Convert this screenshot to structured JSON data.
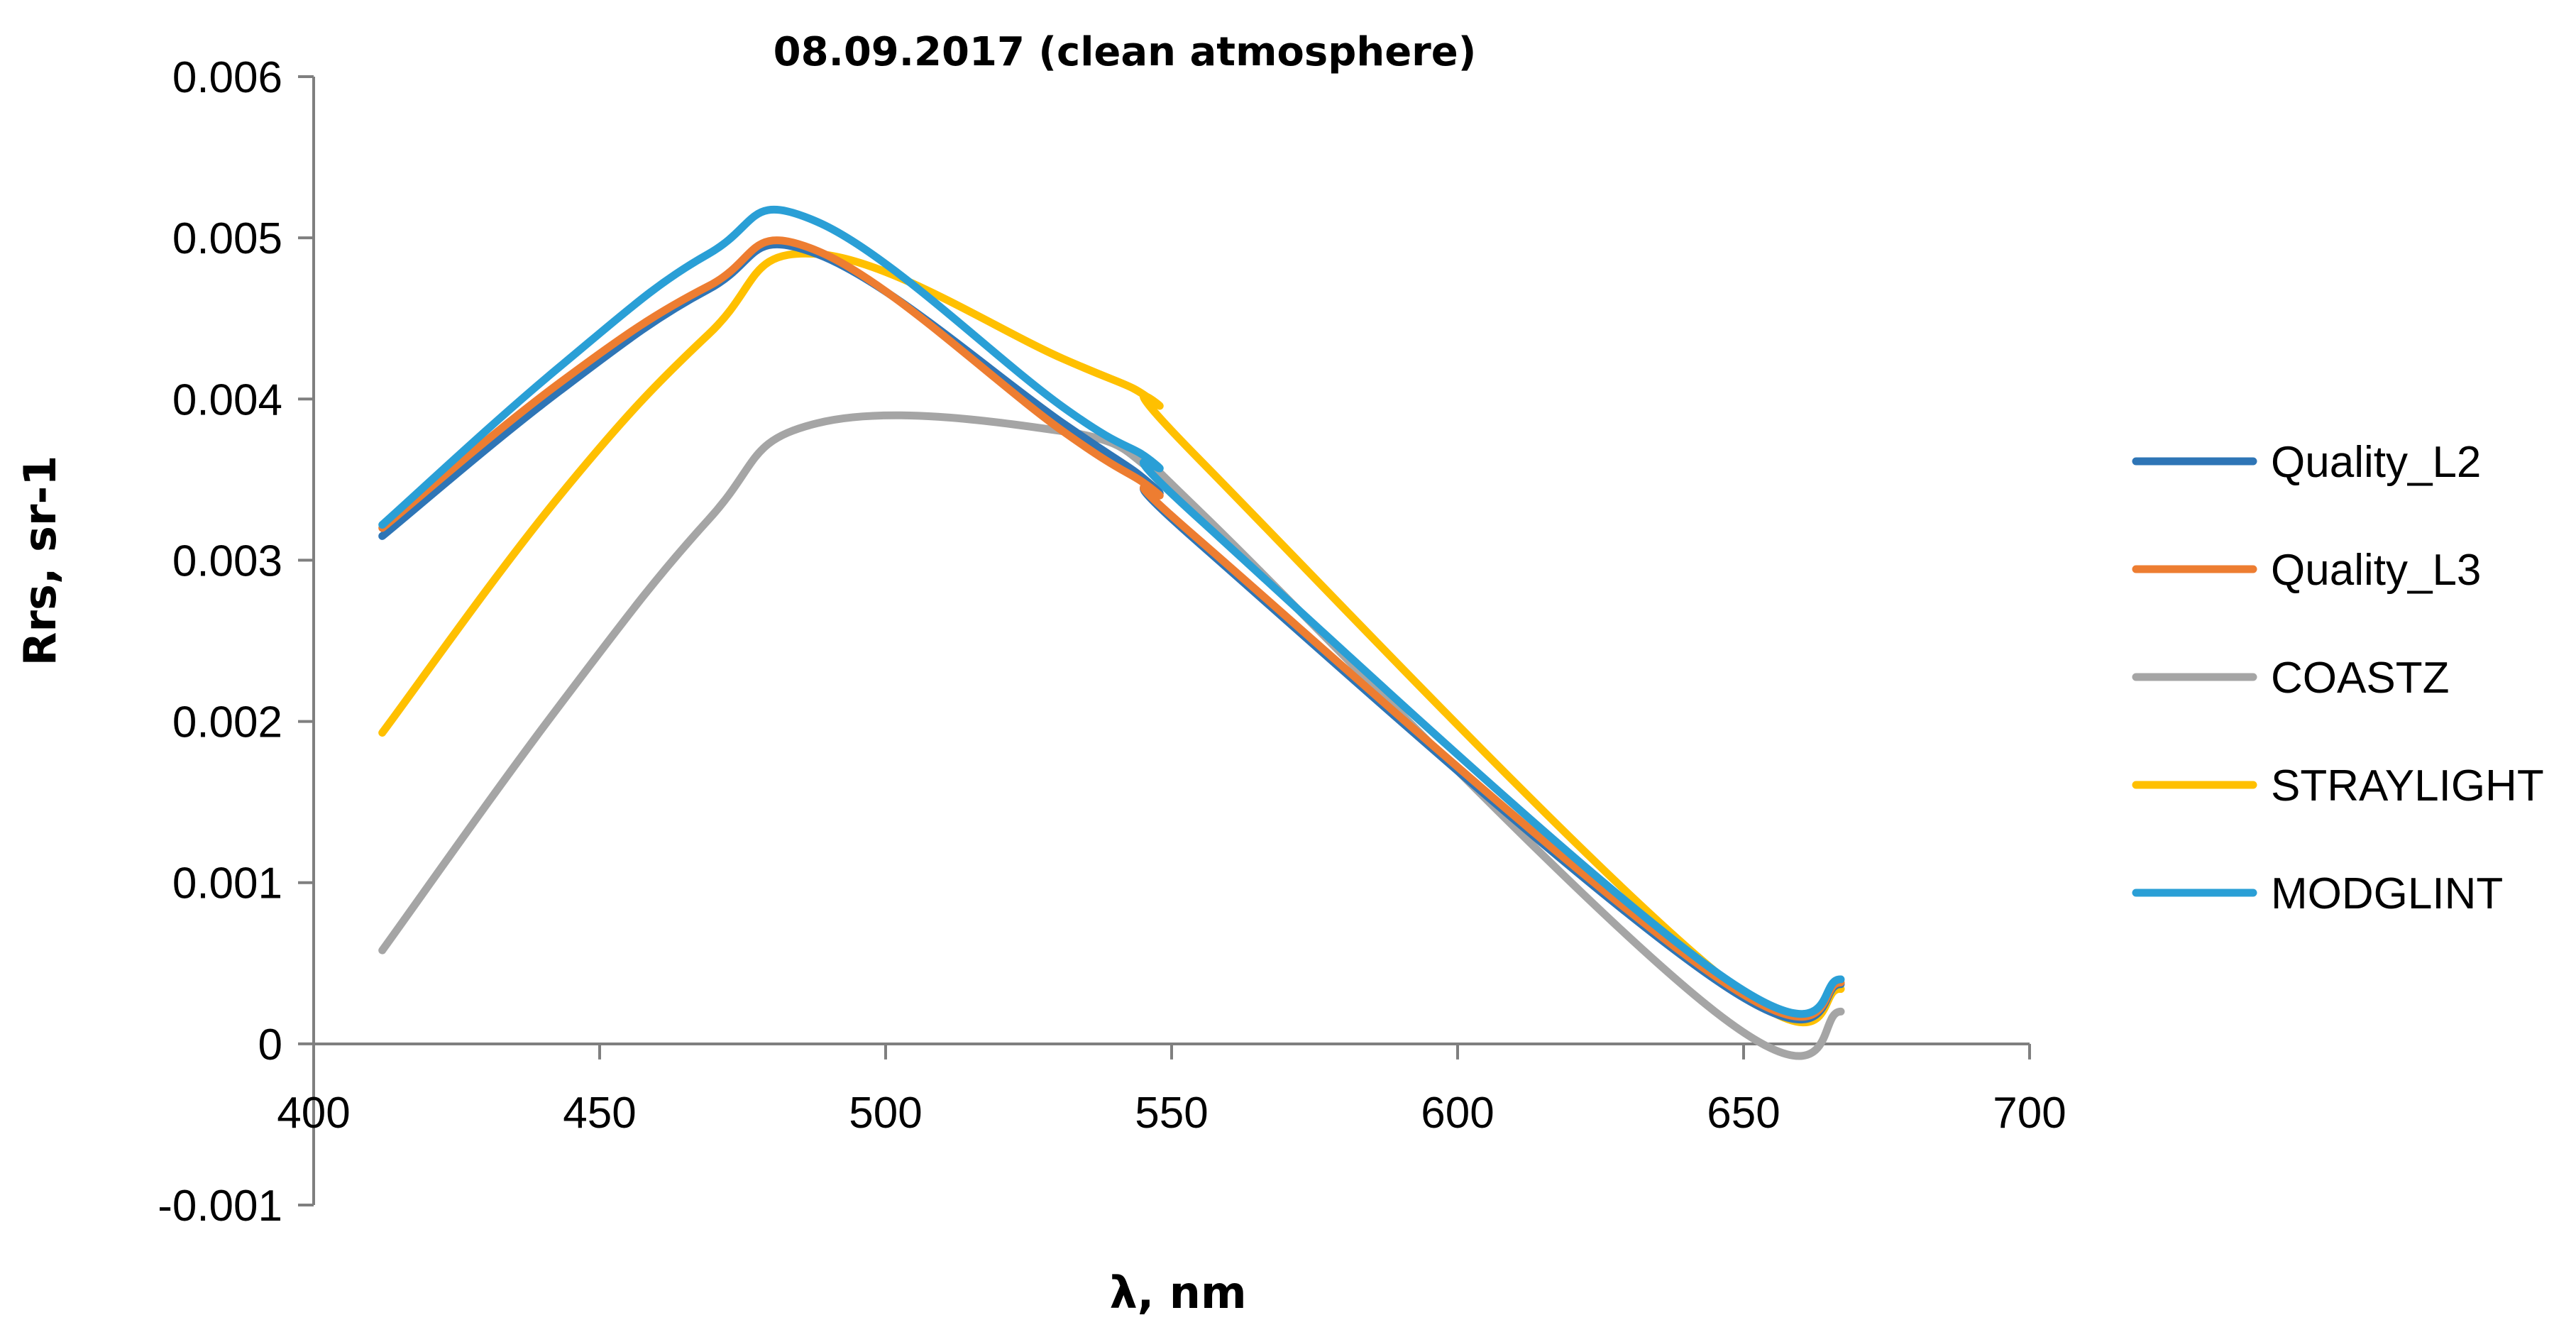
{
  "chart_data": {
    "type": "line",
    "title": "08.09.2017 (clean atmosphere)",
    "xlabel": "λ, nm",
    "ylabel": "Rrs, sr-1",
    "xlim": [
      400,
      700
    ],
    "ylim": [
      -0.001,
      0.006
    ],
    "x_ticks": [
      "400",
      "450",
      "500",
      "550",
      "600",
      "650",
      "700"
    ],
    "y_ticks": [
      "0.006",
      "0.005",
      "0.004",
      "0.003",
      "0.002",
      "0.001",
      "0",
      "-0.001"
    ],
    "grid": false,
    "legend_position": "right",
    "x": [
      412,
      443,
      469,
      488,
      531,
      547,
      555,
      645,
      667
    ],
    "series": [
      {
        "name": "Quality_L2",
        "color": "#2E75B6",
        "values": [
          0.00315,
          0.00405,
          0.00468,
          0.0049,
          0.00385,
          0.00345,
          0.0031,
          0.0004,
          0.00037
        ]
      },
      {
        "name": "Quality_L3",
        "color": "#ED7D31",
        "values": [
          0.0032,
          0.0041,
          0.0047,
          0.00492,
          0.0038,
          0.00343,
          0.00312,
          0.00042,
          0.00038
        ]
      },
      {
        "name": "COASTZ",
        "color": "#A5A5A5",
        "values": [
          0.00058,
          0.0021,
          0.00325,
          0.00385,
          0.0038,
          0.00355,
          0.0033,
          0.0002,
          0.0002
        ]
      },
      {
        "name": "STRAYLIGHT",
        "color": "#FFC000",
        "values": [
          0.00193,
          0.0034,
          0.0044,
          0.0049,
          0.00425,
          0.00398,
          0.00362,
          0.00045,
          0.00034
        ]
      },
      {
        "name": "MODGLINT",
        "color": "#2A9FD6",
        "values": [
          0.00322,
          0.0042,
          0.0049,
          0.0051,
          0.00395,
          0.0036,
          0.00325,
          0.00045,
          0.0004
        ]
      }
    ]
  }
}
